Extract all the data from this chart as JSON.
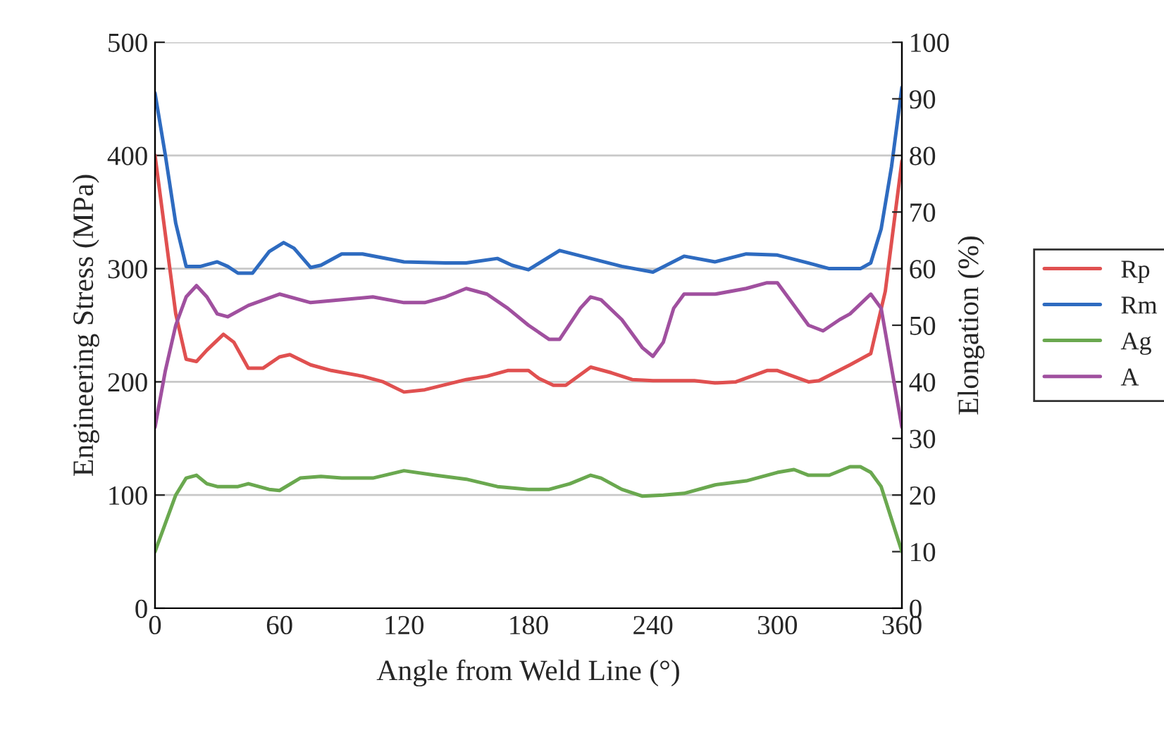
{
  "chart_data": {
    "type": "line",
    "xlabel": "Angle from Weld Line (°)",
    "ylabel": "Engineering Stress (MPa)",
    "y2label": "Elongation (%)",
    "xlim": [
      0,
      360
    ],
    "xticks": [
      0,
      60,
      120,
      180,
      240,
      300,
      360
    ],
    "ylim": [
      0,
      500
    ],
    "yticks": [
      0,
      100,
      200,
      300,
      400,
      500
    ],
    "y2lim": [
      0,
      100
    ],
    "y2ticks": [
      0,
      10,
      20,
      30,
      40,
      50,
      60,
      70,
      80,
      90,
      100
    ],
    "grid": "y",
    "legend": "right",
    "marker": "none",
    "line_style": "solid",
    "series": [
      {
        "name": "Rp",
        "color": "#e05050",
        "x": [
          0,
          5,
          10,
          15,
          20,
          25,
          33,
          38,
          45,
          52,
          60,
          65,
          75,
          85,
          100,
          110,
          120,
          130,
          150,
          160,
          170,
          180,
          185,
          192,
          198,
          210,
          220,
          230,
          240,
          260,
          270,
          280,
          295,
          300,
          315,
          320,
          335,
          345,
          352,
          360
        ],
        "values": [
          400,
          330,
          260,
          220,
          218,
          228,
          242,
          235,
          212,
          212,
          222,
          224,
          215,
          210,
          205,
          200,
          191,
          193,
          202,
          205,
          210,
          210,
          203,
          197,
          197,
          213,
          208,
          202,
          201,
          201,
          199,
          200,
          210,
          210,
          200,
          201,
          215,
          225,
          280,
          395
        ]
      },
      {
        "name": "Rm",
        "color": "#2e6bc0",
        "x": [
          0,
          5,
          10,
          15,
          22,
          30,
          35,
          40,
          47,
          55,
          62,
          67,
          75,
          80,
          90,
          100,
          120,
          140,
          150,
          165,
          172,
          180,
          195,
          210,
          225,
          240,
          255,
          270,
          285,
          300,
          315,
          325,
          340,
          345,
          350,
          355,
          360
        ],
        "values": [
          455,
          400,
          340,
          302,
          302,
          306,
          302,
          296,
          296,
          315,
          323,
          318,
          301,
          303,
          313,
          313,
          306,
          305,
          305,
          309,
          303,
          299,
          316,
          309,
          302,
          297,
          311,
          306,
          313,
          312,
          305,
          300,
          300,
          305,
          335,
          390,
          460
        ]
      },
      {
        "name": "Ag",
        "color": "#6aa84f",
        "axis": "y2",
        "x": [
          0,
          5,
          10,
          15,
          20,
          25,
          30,
          40,
          45,
          55,
          60,
          70,
          80,
          90,
          105,
          120,
          135,
          150,
          165,
          180,
          190,
          200,
          210,
          215,
          225,
          235,
          245,
          255,
          270,
          285,
          300,
          308,
          315,
          325,
          335,
          340,
          345,
          350,
          360
        ],
        "values": [
          10,
          15,
          20,
          23,
          23.5,
          22,
          21.5,
          21.5,
          22,
          21,
          20.8,
          23,
          23.3,
          23,
          23,
          24.3,
          23.5,
          22.8,
          21.5,
          21,
          21,
          22,
          23.5,
          23,
          21,
          19.8,
          20,
          20.3,
          21.8,
          22.5,
          24,
          24.5,
          23.5,
          23.5,
          25,
          25,
          24,
          21.5,
          10
        ]
      },
      {
        "name": "A",
        "color": "#a0509f",
        "axis": "y2",
        "x": [
          0,
          5,
          10,
          15,
          20,
          25,
          30,
          35,
          45,
          60,
          75,
          90,
          105,
          120,
          130,
          140,
          150,
          160,
          170,
          180,
          190,
          195,
          205,
          210,
          215,
          225,
          235,
          240,
          245,
          250,
          255,
          270,
          285,
          295,
          300,
          305,
          315,
          322,
          330,
          335,
          345,
          350,
          360
        ],
        "values": [
          32,
          42,
          50,
          55,
          57,
          55,
          52,
          51.5,
          53.5,
          55.5,
          54,
          54.5,
          55,
          54,
          54,
          55,
          56.5,
          55.5,
          53,
          50,
          47.5,
          47.5,
          53,
          55,
          54.5,
          51,
          46,
          44.5,
          47,
          53,
          55.5,
          55.5,
          56.5,
          57.5,
          57.5,
          55,
          50,
          49,
          51,
          52,
          55.5,
          53,
          32
        ]
      }
    ]
  }
}
